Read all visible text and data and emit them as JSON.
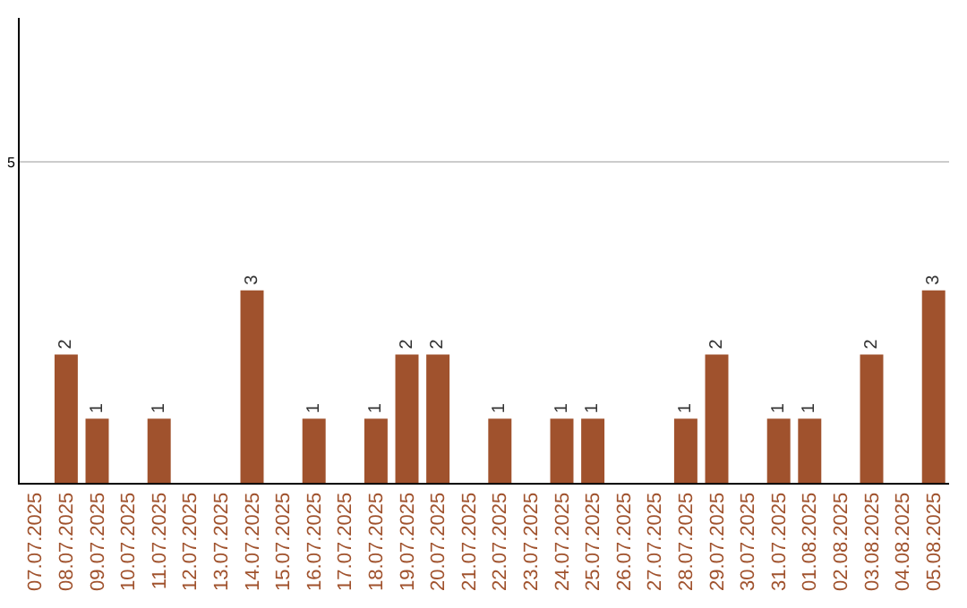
{
  "chart_data": {
    "type": "bar",
    "categories": [
      "07.07.2025",
      "08.07.2025",
      "09.07.2025",
      "10.07.2025",
      "11.07.2025",
      "12.07.2025",
      "13.07.2025",
      "14.07.2025",
      "15.07.2025",
      "16.07.2025",
      "17.07.2025",
      "18.07.2025",
      "19.07.2025",
      "20.07.2025",
      "21.07.2025",
      "22.07.2025",
      "23.07.2025",
      "24.07.2025",
      "25.07.2025",
      "26.07.2025",
      "27.07.2025",
      "28.07.2025",
      "29.07.2025",
      "30.07.2025",
      "31.07.2025",
      "01.08.2025",
      "02.08.2025",
      "03.08.2025",
      "04.08.2025",
      "05.08.2025"
    ],
    "values": [
      0,
      2,
      1,
      0,
      1,
      0,
      0,
      3,
      0,
      1,
      0,
      1,
      2,
      2,
      0,
      1,
      0,
      1,
      1,
      0,
      0,
      1,
      2,
      0,
      1,
      1,
      0,
      2,
      0,
      3
    ],
    "value_labels": [
      null,
      "2",
      "1",
      null,
      "1",
      null,
      null,
      "3",
      null,
      "1",
      null,
      "1",
      "2",
      "2",
      null,
      "1",
      null,
      "1",
      "1",
      null,
      null,
      "1",
      "2",
      null,
      "1",
      "1",
      null,
      "2",
      null,
      "3"
    ],
    "color": "#a0522d",
    "ylim": [
      0,
      7.25
    ],
    "yticks": [
      5
    ],
    "grid": "y"
  }
}
